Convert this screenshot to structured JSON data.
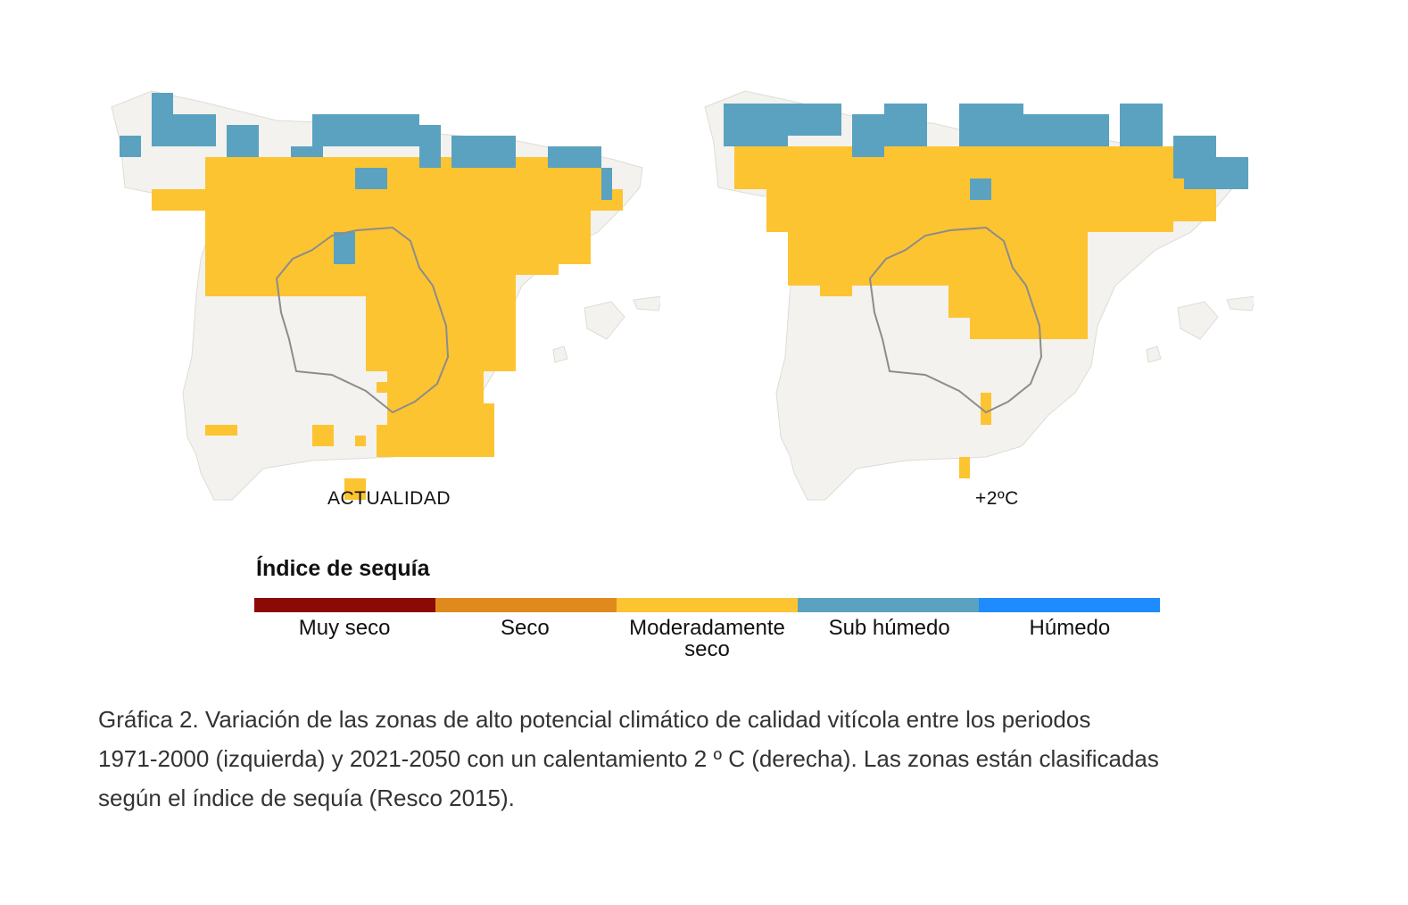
{
  "maps": [
    {
      "id": "left",
      "label": "ACTUALIDAD"
    },
    {
      "id": "right",
      "label": "+2ºC"
    }
  ],
  "legend": {
    "title": "Índice de sequía",
    "categories": [
      {
        "label": "Muy seco",
        "color": "#8B0A06"
      },
      {
        "label": "Seco",
        "color": "#E08A1E"
      },
      {
        "label": "Moderadamente seco",
        "color": "#FDC431"
      },
      {
        "label": "Sub húmedo",
        "color": "#5AA2C0"
      },
      {
        "label": "Húmedo",
        "color": "#1E8BFF"
      }
    ]
  },
  "caption": {
    "line1": "Gráfica 2. Variación de las zonas de alto potencial climático de calidad vitícola entre los periodos",
    "line2": "1971-2000 (izquierda) y 2021-2050 con un calentamiento 2 º C (derecha). Las zonas están clasificadas",
    "line3": "según el índice de sequía (Resco 2015)."
  },
  "colors": {
    "land": "#F3F2EE",
    "region_border": "#8C8C8C"
  }
}
